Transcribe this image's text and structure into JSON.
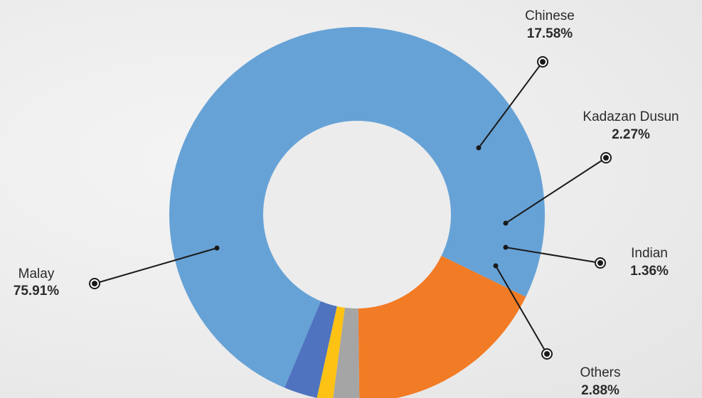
{
  "chart_data": {
    "type": "pie",
    "variant": "donut",
    "title": "",
    "slices": [
      {
        "name": "Malay",
        "value": 75.91,
        "value_label": "75.91%",
        "color": "#66a2d6"
      },
      {
        "name": "Chinese",
        "value": 17.58,
        "value_label": "17.58%",
        "color": "#f27b25"
      },
      {
        "name": "Kadazan Dusun",
        "value": 2.27,
        "value_label": "2.27%",
        "color": "#a5a5a5"
      },
      {
        "name": "Indian",
        "value": 1.36,
        "value_label": "1.36%",
        "color": "#fec215"
      },
      {
        "name": "Others",
        "value": 2.88,
        "value_label": "2.88%",
        "color": "#4f73bf"
      }
    ],
    "legend": "none"
  }
}
